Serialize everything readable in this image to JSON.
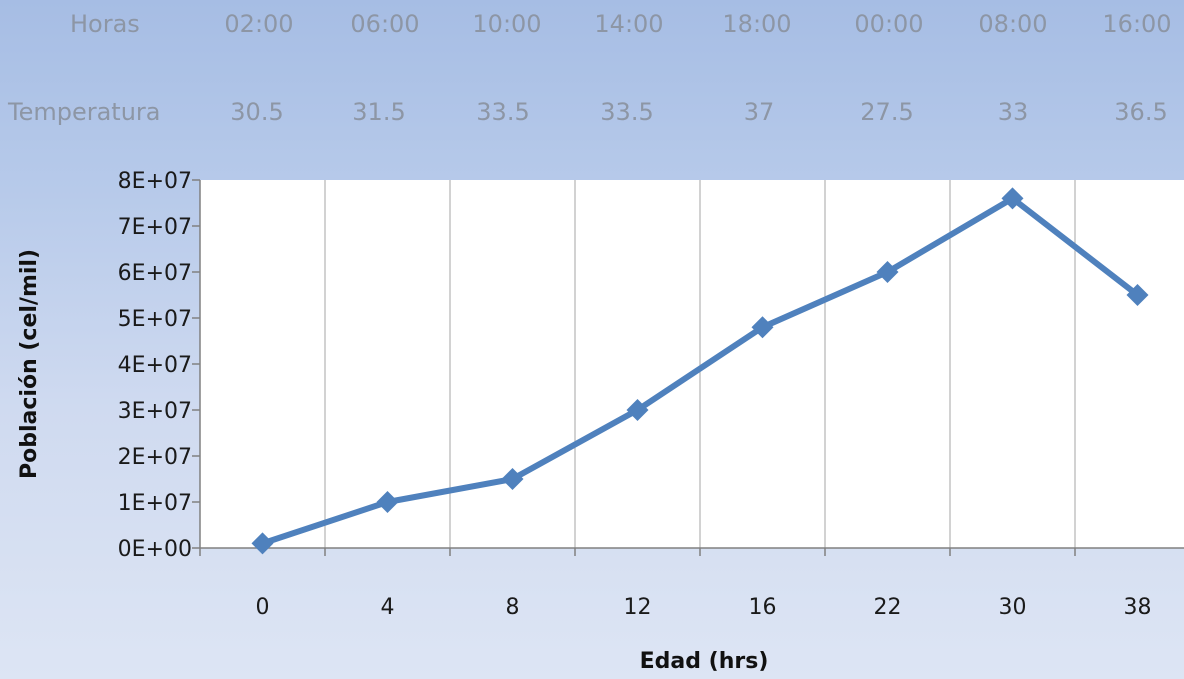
{
  "table": {
    "rows": [
      {
        "label": "Horas",
        "values": [
          "02:00",
          "06:00",
          "10:00",
          "14:00",
          "18:00",
          "00:00",
          "08:00",
          "16:00"
        ]
      },
      {
        "label": "Temperatura",
        "values": [
          "30.5",
          "31.5",
          "33.5",
          "33.5",
          "37",
          "27.5",
          "33",
          "36.5"
        ]
      }
    ]
  },
  "chart_data": {
    "type": "line",
    "categories": [
      "0",
      "4",
      "8",
      "12",
      "16",
      "22",
      "30",
      "38"
    ],
    "series": [
      {
        "values": [
          1000000,
          10000000,
          15000000,
          30000000,
          48000000,
          60000000,
          76000000,
          55000000
        ]
      }
    ],
    "xlabel": "Edad (hrs)",
    "ylabel": "Población  (cel/mil)",
    "ylim": [
      0,
      80000000
    ],
    "yticks": [
      "0E+00",
      "1E+07",
      "2E+07",
      "3E+07",
      "4E+07",
      "5E+07",
      "6E+07",
      "7E+07",
      "8E+07"
    ],
    "grid": "vertical",
    "series_color": "#4f81bd",
    "marker": "diamond"
  }
}
